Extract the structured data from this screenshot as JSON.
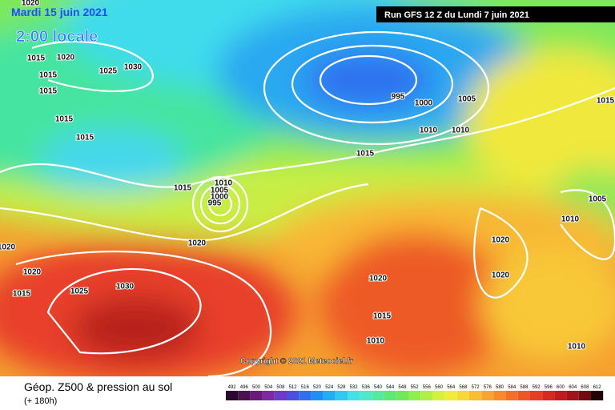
{
  "header": {
    "date": "Mardi 15 juin 2021",
    "time": "2:00 locale",
    "run": "Run GFS 12 Z du Lundi 7 juin 2021"
  },
  "copyright": "Copyright © 2021 Meteociel.fr",
  "footer": {
    "title": "Géop. Z500 & pression au sol",
    "lead": "(+ 180h)"
  },
  "isobar_labels": [
    1020,
    1015,
    1020,
    1030,
    1025,
    1015,
    1015,
    1015,
    1015,
    995,
    1000,
    1005,
    1010,
    1010,
    1015,
    1015,
    1010,
    1005,
    1000,
    995,
    1005,
    1010,
    1015,
    1020,
    1020,
    1020,
    1015,
    1025,
    1030,
    1020,
    1020,
    1020,
    1015,
    1010,
    1010
  ],
  "colorbar": {
    "levels": [
      492,
      496,
      500,
      504,
      508,
      512,
      516,
      520,
      524,
      528,
      532,
      536,
      540,
      544,
      548,
      552,
      556,
      560,
      564,
      568,
      572,
      576,
      580,
      584,
      588,
      592,
      596,
      600,
      604,
      608,
      612
    ],
    "colors": [
      "#2a0a2e",
      "#4a1250",
      "#6a1a78",
      "#7b2aa0",
      "#6c3cc8",
      "#4b4fe0",
      "#2f6ff0",
      "#1f8ff5",
      "#22aef5",
      "#33c8f0",
      "#45e0e8",
      "#4fe8c8",
      "#55eaa0",
      "#5ee878",
      "#6fe85a",
      "#8ef04a",
      "#b0f045",
      "#d6f040",
      "#f0ec3c",
      "#f8d838",
      "#f8be34",
      "#f8a430",
      "#f88a2c",
      "#f47028",
      "#ee5626",
      "#e43e24",
      "#d42a22",
      "#c01c1e",
      "#a0141a",
      "#700c12",
      "#200406"
    ]
  }
}
